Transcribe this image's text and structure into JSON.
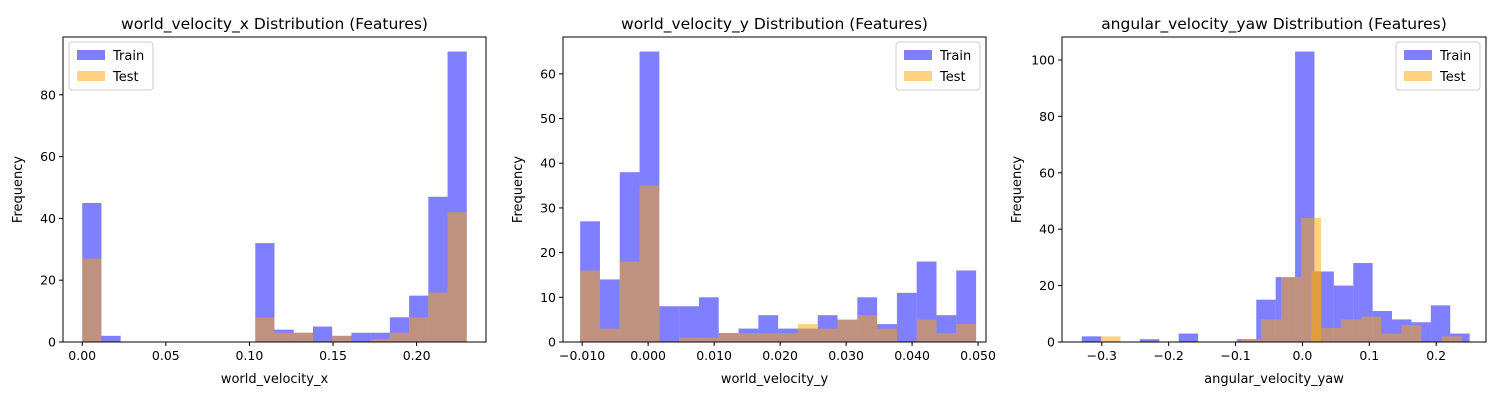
{
  "colors": {
    "train": "#0000ff",
    "test": "#ffa500",
    "bar_alpha": 0.5
  },
  "chart_data": [
    {
      "type": "bar",
      "title": "world_velocity_x Distribution (Features)",
      "xlabel": "world_velocity_x",
      "ylabel": "Frequency",
      "xlim": [
        -0.0115,
        0.2415
      ],
      "ylim": [
        0,
        98.7
      ],
      "xticks": [
        0.0,
        0.05,
        0.1,
        0.15,
        0.2
      ],
      "xtick_labels": [
        "0.00",
        "0.05",
        "0.10",
        "0.15",
        "0.20"
      ],
      "yticks": [
        0,
        20,
        40,
        60,
        80
      ],
      "ytick_labels": [
        "0",
        "20",
        "40",
        "60",
        "80"
      ],
      "legend": {
        "position": "upper-left",
        "entries": [
          "Train",
          "Test"
        ]
      },
      "series": [
        {
          "name": "Train",
          "bins": [
            [
              0.0,
              0.0115,
              45
            ],
            [
              0.0115,
              0.023,
              2
            ],
            [
              0.023,
              0.0345,
              0
            ],
            [
              0.0345,
              0.046,
              0
            ],
            [
              0.046,
              0.0575,
              0
            ],
            [
              0.0575,
              0.069,
              0
            ],
            [
              0.069,
              0.0805,
              0
            ],
            [
              0.0805,
              0.092,
              0
            ],
            [
              0.092,
              0.1035,
              0
            ],
            [
              0.1035,
              0.115,
              32
            ],
            [
              0.115,
              0.1265,
              4
            ],
            [
              0.1265,
              0.138,
              3
            ],
            [
              0.138,
              0.1495,
              5
            ],
            [
              0.1495,
              0.161,
              2
            ],
            [
              0.161,
              0.1725,
              3
            ],
            [
              0.1725,
              0.184,
              3
            ],
            [
              0.184,
              0.1955,
              8
            ],
            [
              0.1955,
              0.207,
              15
            ],
            [
              0.207,
              0.2185,
              47
            ],
            [
              0.2185,
              0.23,
              94
            ]
          ]
        },
        {
          "name": "Test",
          "bins": [
            [
              0.0,
              0.0115,
              27
            ],
            [
              0.1035,
              0.115,
              8
            ],
            [
              0.115,
              0.1265,
              3
            ],
            [
              0.1265,
              0.138,
              3
            ],
            [
              0.1495,
              0.161,
              2
            ],
            [
              0.1725,
              0.184,
              1
            ],
            [
              0.184,
              0.1955,
              3
            ],
            [
              0.1955,
              0.207,
              8
            ],
            [
              0.207,
              0.2185,
              16
            ],
            [
              0.2185,
              0.23,
              42
            ]
          ]
        }
      ]
    },
    {
      "type": "bar",
      "title": "world_velocity_y Distribution (Features)",
      "xlabel": "world_velocity_y",
      "ylabel": "Frequency",
      "xlim": [
        -0.0129,
        0.0512
      ],
      "ylim": [
        0,
        68.25
      ],
      "xticks": [
        -0.01,
        0.0,
        0.01,
        0.02,
        0.03,
        0.04,
        0.05
      ],
      "xtick_labels": [
        "−0.010",
        "0.000",
        "0.010",
        "0.020",
        "0.030",
        "0.040",
        "0.050"
      ],
      "yticks": [
        0,
        10,
        20,
        30,
        40,
        50,
        60
      ],
      "ytick_labels": [
        "0",
        "10",
        "20",
        "30",
        "40",
        "50",
        "60"
      ],
      "legend": {
        "position": "upper-right",
        "entries": [
          "Train",
          "Test"
        ]
      },
      "series": [
        {
          "name": "Train",
          "bins": [
            [
              -0.0103,
              -0.0073,
              27
            ],
            [
              -0.0073,
              -0.0043,
              14
            ],
            [
              -0.0043,
              -0.0013,
              38
            ],
            [
              -0.0013,
              0.0017,
              65
            ],
            [
              0.0017,
              0.0047,
              8
            ],
            [
              0.0047,
              0.0077,
              8
            ],
            [
              0.0077,
              0.0107,
              10
            ],
            [
              0.0107,
              0.0137,
              2
            ],
            [
              0.0137,
              0.0167,
              3
            ],
            [
              0.0167,
              0.0197,
              6
            ],
            [
              0.0197,
              0.0227,
              3
            ],
            [
              0.0227,
              0.0257,
              3
            ],
            [
              0.0257,
              0.0287,
              6
            ],
            [
              0.0287,
              0.0317,
              5
            ],
            [
              0.0317,
              0.0347,
              10
            ],
            [
              0.0347,
              0.0377,
              4
            ],
            [
              0.0377,
              0.0407,
              11
            ],
            [
              0.0407,
              0.0437,
              18
            ],
            [
              0.0437,
              0.0467,
              6
            ],
            [
              0.0467,
              0.0497,
              16
            ]
          ]
        },
        {
          "name": "Test",
          "bins": [
            [
              -0.0103,
              -0.0073,
              16
            ],
            [
              -0.0073,
              -0.0043,
              3
            ],
            [
              -0.0043,
              -0.0013,
              18
            ],
            [
              -0.0013,
              0.0017,
              35
            ],
            [
              0.0047,
              0.0077,
              1
            ],
            [
              0.0077,
              0.0107,
              1
            ],
            [
              0.0107,
              0.0137,
              2
            ],
            [
              0.0137,
              0.0167,
              2
            ],
            [
              0.0167,
              0.0197,
              2
            ],
            [
              0.0197,
              0.0227,
              2
            ],
            [
              0.0227,
              0.0257,
              4
            ],
            [
              0.0257,
              0.0287,
              3
            ],
            [
              0.0287,
              0.0317,
              5
            ],
            [
              0.0317,
              0.0347,
              6
            ],
            [
              0.0347,
              0.0377,
              3
            ],
            [
              0.0377,
              0.0407,
              0
            ],
            [
              0.0407,
              0.0437,
              5
            ],
            [
              0.0437,
              0.0467,
              2
            ],
            [
              0.0467,
              0.0497,
              4
            ]
          ]
        }
      ]
    },
    {
      "type": "bar",
      "title": "angular_velocity_yaw Distribution (Features)",
      "xlabel": "angular_velocity_yaw",
      "ylabel": "Frequency",
      "xlim": [
        -0.3595,
        0.2745
      ],
      "ylim": [
        0,
        108.15
      ],
      "xticks": [
        -0.3,
        -0.2,
        -0.1,
        0.0,
        0.1,
        0.2
      ],
      "xtick_labels": [
        "−0.3",
        "−0.2",
        "−0.1",
        "0.0",
        "0.1",
        "0.2"
      ],
      "yticks": [
        0,
        20,
        40,
        60,
        80,
        100
      ],
      "ytick_labels": [
        "0",
        "20",
        "40",
        "60",
        "80",
        "100"
      ],
      "legend": {
        "position": "upper-right",
        "entries": [
          "Train",
          "Test"
        ]
      },
      "series": [
        {
          "name": "Train",
          "bins": [
            [
              -0.33,
              -0.301,
              2
            ],
            [
              -0.301,
              -0.272,
              0
            ],
            [
              -0.272,
              -0.243,
              0
            ],
            [
              -0.243,
              -0.214,
              1
            ],
            [
              -0.214,
              -0.185,
              0
            ],
            [
              -0.185,
              -0.156,
              3
            ],
            [
              -0.156,
              -0.127,
              0
            ],
            [
              -0.127,
              -0.098,
              0
            ],
            [
              -0.098,
              -0.069,
              1
            ],
            [
              -0.069,
              -0.04,
              15
            ],
            [
              -0.04,
              -0.011,
              23
            ],
            [
              -0.011,
              0.018,
              103
            ],
            [
              0.018,
              0.047,
              25
            ],
            [
              0.047,
              0.076,
              20
            ],
            [
              0.076,
              0.105,
              28
            ],
            [
              0.105,
              0.134,
              11
            ],
            [
              0.134,
              0.163,
              8
            ],
            [
              0.163,
              0.192,
              7
            ],
            [
              0.192,
              0.221,
              13
            ],
            [
              0.221,
              0.25,
              3
            ]
          ]
        },
        {
          "name": "Test",
          "bins": [
            [
              -0.302,
              -0.272,
              2
            ],
            [
              -0.092,
              -0.062,
              1
            ],
            [
              -0.062,
              -0.032,
              8
            ],
            [
              -0.032,
              -0.002,
              23
            ],
            [
              -0.002,
              0.028,
              44
            ],
            [
              0.013,
              0.028,
              25
            ],
            [
              0.028,
              0.058,
              5
            ],
            [
              0.058,
              0.088,
              8
            ],
            [
              0.088,
              0.118,
              9
            ],
            [
              0.118,
              0.148,
              3
            ],
            [
              0.148,
              0.178,
              6
            ],
            [
              0.178,
              0.208,
              0
            ],
            [
              0.208,
              0.238,
              2
            ]
          ]
        }
      ]
    }
  ]
}
